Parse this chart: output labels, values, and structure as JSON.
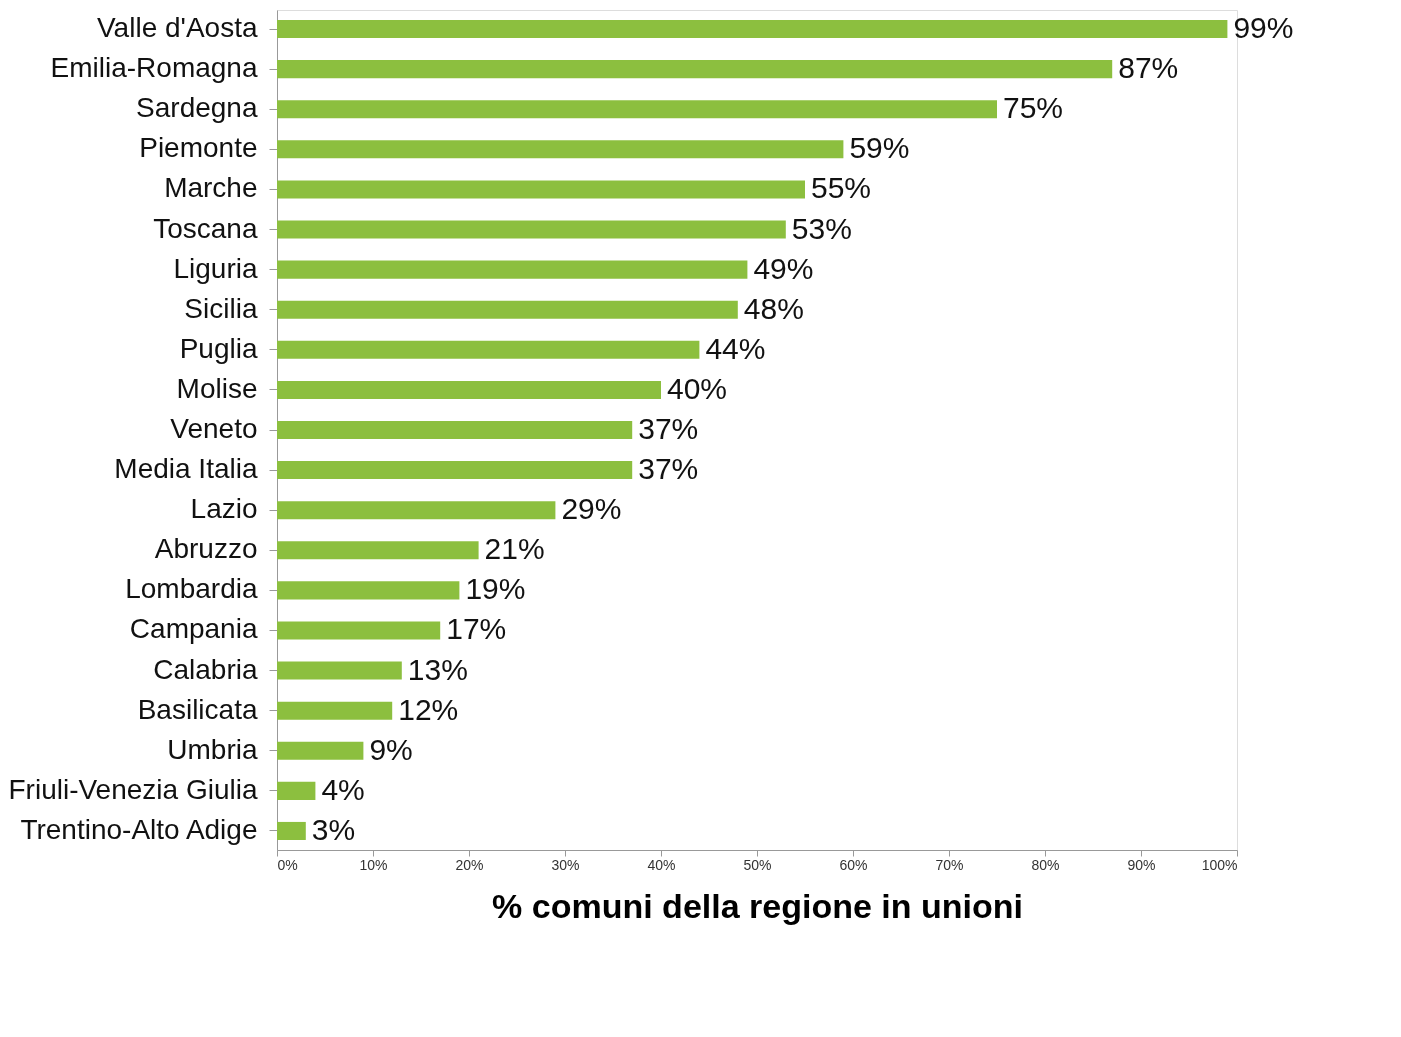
{
  "chart_data": {
    "type": "bar",
    "orientation": "horizontal",
    "xlabel": "% comuni della regione in unioni",
    "categories": [
      "Valle d'Aosta",
      "Emilia-Romagna",
      "Sardegna",
      "Piemonte",
      "Marche",
      "Toscana",
      "Liguria",
      "Sicilia",
      "Puglia",
      "Molise",
      "Veneto",
      "Media Italia",
      "Lazio",
      "Abruzzo",
      "Lombardia",
      "Campania",
      "Calabria",
      "Basilicata",
      "Umbria",
      "Friuli-Venezia Giulia",
      "Trentino-Alto Adige"
    ],
    "values": [
      99,
      87,
      75,
      59,
      55,
      53,
      49,
      48,
      44,
      40,
      37,
      37,
      29,
      21,
      19,
      17,
      13,
      12,
      9,
      4,
      3
    ],
    "value_labels": [
      "99%",
      "87%",
      "75%",
      "59%",
      "55%",
      "53%",
      "49%",
      "48%",
      "44%",
      "40%",
      "37%",
      "37%",
      "29%",
      "21%",
      "19%",
      "17%",
      "13%",
      "12%",
      "9%",
      "4%",
      "3%"
    ],
    "color": "#8cbf3f",
    "xlim": [
      0,
      100
    ],
    "xticks": [
      {
        "value": 0,
        "label": "0%"
      },
      {
        "value": 10,
        "label": "10%"
      },
      {
        "value": 20,
        "label": "20%"
      },
      {
        "value": 30,
        "label": "30%"
      },
      {
        "value": 40,
        "label": "40%"
      },
      {
        "value": 50,
        "label": "50%"
      },
      {
        "value": 60,
        "label": "60%"
      },
      {
        "value": 70,
        "label": "70%"
      },
      {
        "value": 80,
        "label": "80%"
      },
      {
        "value": 90,
        "label": "90%"
      },
      {
        "value": 100,
        "label": "100%"
      }
    ],
    "grid": false
  }
}
